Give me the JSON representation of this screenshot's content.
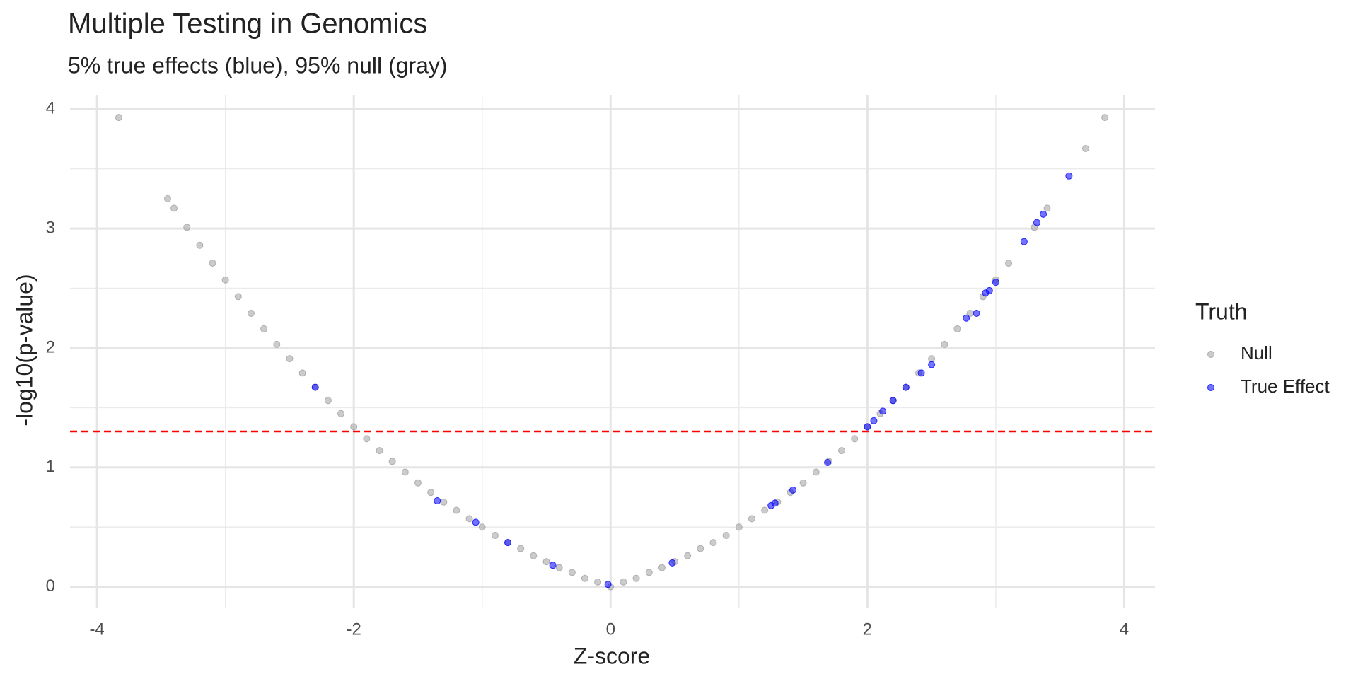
{
  "chart_data": {
    "type": "scatter",
    "title": "Multiple Testing in Genomics",
    "subtitle": "5% true effects (blue), 95% null (gray)",
    "x_label": "Z-score",
    "y_label": "-log10(p-value)",
    "legend_title": "Truth",
    "legend_position": "right",
    "grid": true,
    "xlim": [
      -4.21,
      4.24
    ],
    "ylim": [
      -0.18,
      4.12
    ],
    "xticks": [
      -4,
      -2,
      0,
      2,
      4
    ],
    "yticks": [
      0,
      1,
      2,
      3,
      4
    ],
    "hline": 1.301,
    "hline_color": "#ff0000",
    "series": [
      {
        "name": "Null",
        "color": "#a0a0a0",
        "x": [
          -3.83,
          -3.45,
          -3.4,
          -3.3,
          -3.2,
          -3.1,
          -3.0,
          -2.9,
          -2.8,
          -2.7,
          -2.6,
          -2.5,
          -2.4,
          -2.3,
          -2.2,
          -2.1,
          -2.0,
          -1.9,
          -1.8,
          -1.7,
          -1.6,
          -1.5,
          -1.4,
          -1.3,
          -1.2,
          -1.1,
          -1.0,
          -0.9,
          -0.8,
          -0.7,
          -0.6,
          -0.5,
          -0.4,
          -0.3,
          -0.2,
          -0.1,
          0,
          0.1,
          0.2,
          0.3,
          0.4,
          0.5,
          0.6,
          0.7,
          0.8,
          0.9,
          1.0,
          1.1,
          1.2,
          1.3,
          1.4,
          1.5,
          1.6,
          1.7,
          1.8,
          1.9,
          2.0,
          2.1,
          2.2,
          2.3,
          2.4,
          2.5,
          2.6,
          2.7,
          2.8,
          2.9,
          3.0,
          3.1,
          3.3,
          3.4,
          3.7,
          3.85
        ],
        "values": [
          3.93,
          3.25,
          3.17,
          3.01,
          2.86,
          2.71,
          2.57,
          2.43,
          2.29,
          2.16,
          2.03,
          1.91,
          1.79,
          1.67,
          1.56,
          1.45,
          1.34,
          1.24,
          1.14,
          1.05,
          0.96,
          0.87,
          0.79,
          0.71,
          0.64,
          0.57,
          0.5,
          0.43,
          0.37,
          0.32,
          0.26,
          0.21,
          0.16,
          0.12,
          0.07,
          0.04,
          0,
          0.04,
          0.07,
          0.12,
          0.16,
          0.21,
          0.26,
          0.32,
          0.37,
          0.43,
          0.5,
          0.57,
          0.64,
          0.71,
          0.79,
          0.87,
          0.96,
          1.05,
          1.14,
          1.24,
          1.34,
          1.45,
          1.56,
          1.67,
          1.79,
          1.91,
          2.03,
          2.16,
          2.29,
          2.43,
          2.57,
          2.71,
          3.01,
          3.17,
          3.67,
          3.93
        ]
      },
      {
        "name": "True Effect",
        "color": "#0000ff",
        "x": [
          -2.3,
          -1.35,
          -1.05,
          -0.8,
          -0.45,
          -0.02,
          0.48,
          1.25,
          1.28,
          1.42,
          1.69,
          2.0,
          2.05,
          2.12,
          2.2,
          2.3,
          2.42,
          2.5,
          2.77,
          2.85,
          2.92,
          2.95,
          3.0,
          3.22,
          3.32,
          3.37,
          3.57
        ],
        "values": [
          1.67,
          0.72,
          0.54,
          0.37,
          0.18,
          0.02,
          0.2,
          0.68,
          0.7,
          0.81,
          1.04,
          1.34,
          1.39,
          1.47,
          1.56,
          1.67,
          1.79,
          1.86,
          2.25,
          2.29,
          2.46,
          2.48,
          2.55,
          2.89,
          3.05,
          3.12,
          3.44
        ]
      }
    ]
  }
}
